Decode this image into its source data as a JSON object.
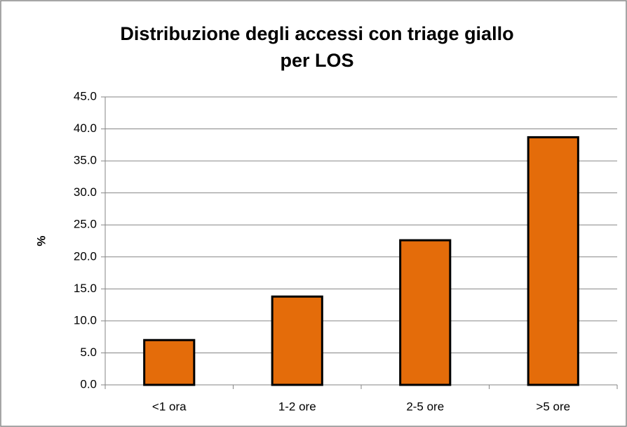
{
  "chart_data": {
    "type": "bar",
    "title": [
      "Distribuzione degli accessi con triage giallo",
      "per LOS"
    ],
    "y_label": "%",
    "categories": [
      "<1 ora",
      "1-2 ore",
      "2-5 ore",
      ">5 ore"
    ],
    "values": [
      7.0,
      13.8,
      22.6,
      38.7
    ],
    "color": "#e46c0a",
    "ylim": [
      0,
      45
    ],
    "yticks": [
      {
        "value": 0,
        "label": "0.0"
      },
      {
        "value": 5,
        "label": "5.0"
      },
      {
        "value": 10,
        "label": "10.0"
      },
      {
        "value": 15,
        "label": "15.0"
      },
      {
        "value": 20,
        "label": "20.0"
      },
      {
        "value": 25,
        "label": "25.0"
      },
      {
        "value": 30,
        "label": "30.0"
      },
      {
        "value": 35,
        "label": "35.0"
      },
      {
        "value": 40,
        "label": "40.0"
      },
      {
        "value": 45,
        "label": "45.0"
      }
    ],
    "grid": true
  }
}
